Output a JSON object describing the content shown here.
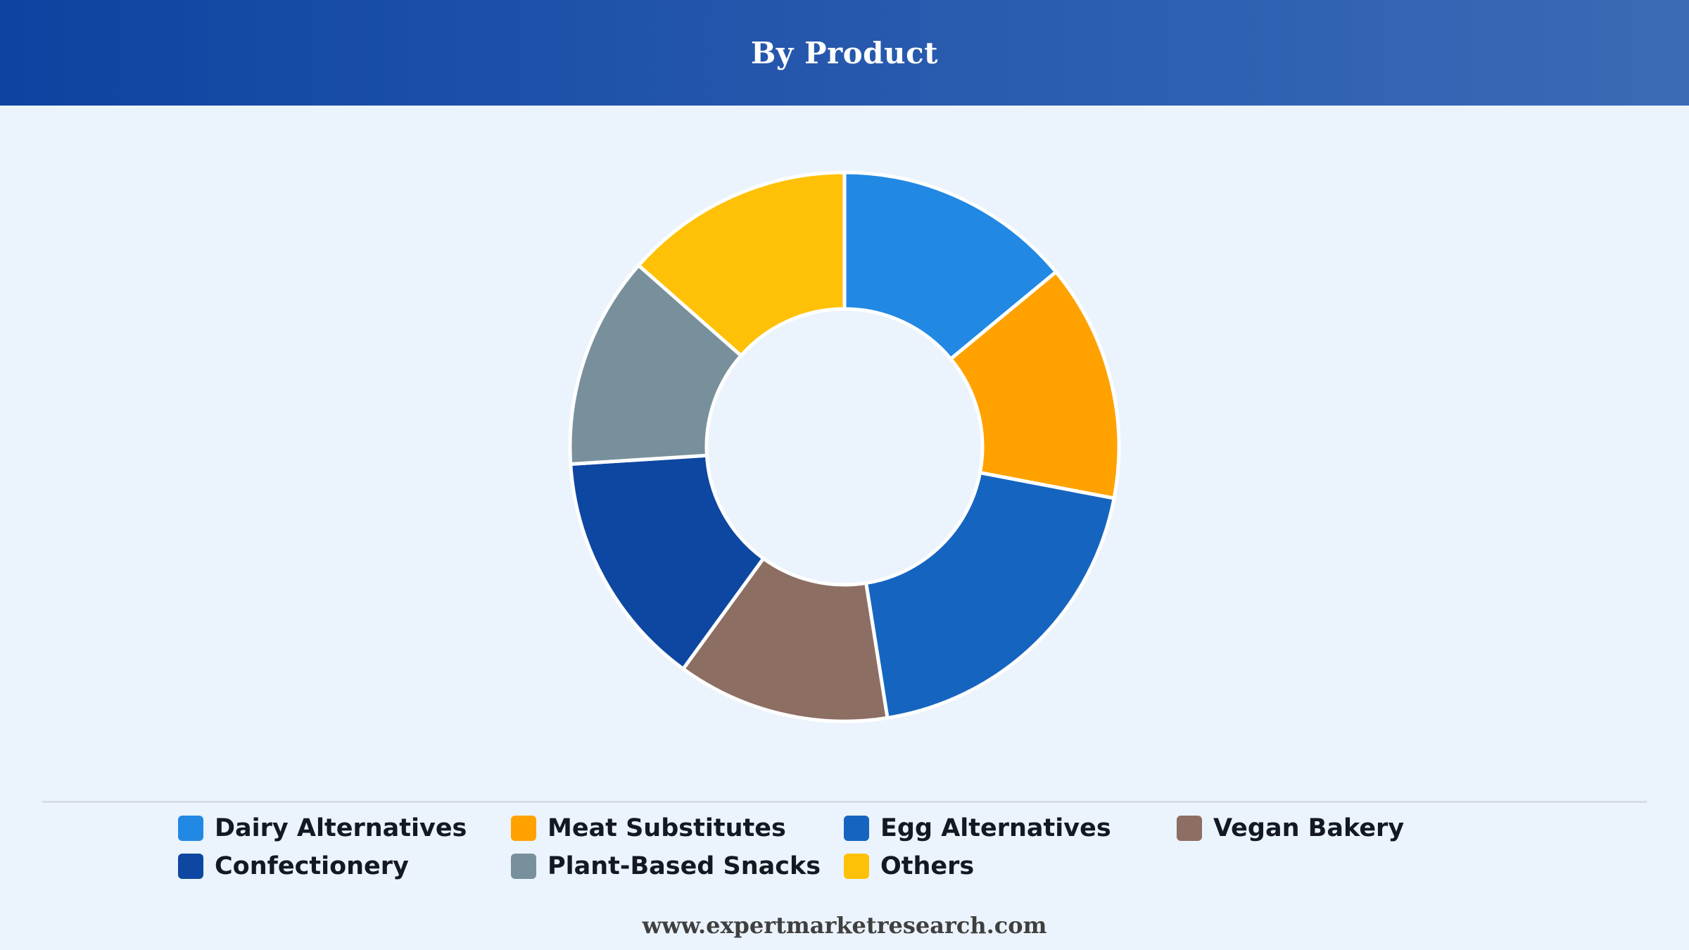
{
  "header": {
    "title": "By Product"
  },
  "footer": {
    "source": "www.expertmarketresearch.com"
  },
  "chart_data": {
    "type": "pie",
    "title": "By Product",
    "donut": true,
    "categories": [
      "Dairy Alternatives",
      "Meat Substitutes",
      "Egg Alternatives",
      "Vegan Bakery",
      "Confectionery",
      "Plant-Based Snacks",
      "Others"
    ],
    "values": [
      14,
      14,
      19.5,
      12.5,
      14,
      12.5,
      13.5
    ],
    "colors": [
      "#2189e4",
      "#ffa200",
      "#1565c0",
      "#8d6e63",
      "#0d47a1",
      "#78909c",
      "#ffc107"
    ],
    "legend_position": "bottom",
    "data_labels": false
  }
}
